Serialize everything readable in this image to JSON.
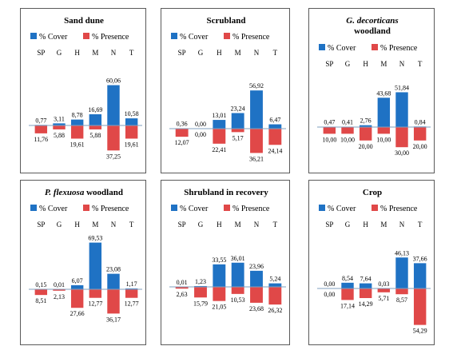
{
  "legend": {
    "cover": "% Cover",
    "presence": "% Presence"
  },
  "colors": {
    "cover": "#1f72c4",
    "presence": "#e04848"
  },
  "chart_data": [
    {
      "type": "bar",
      "title": "Sand dune",
      "categories": [
        "SP",
        "G",
        "H",
        "M",
        "N",
        "T"
      ],
      "series": [
        {
          "name": "% Cover",
          "values": [
            0.77,
            3.11,
            8.78,
            16.69,
            60.06,
            10.58
          ],
          "labels": [
            "0,77",
            "3,11",
            "8,78",
            "16,69",
            "60,06",
            "10,58"
          ]
        },
        {
          "name": "% Presence",
          "values": [
            11.76,
            5.88,
            19.61,
            5.88,
            37.25,
            19.61
          ],
          "labels": [
            "11,76",
            "5,88",
            "19,61",
            "5,88",
            "37,25",
            "19,61"
          ]
        }
      ]
    },
    {
      "type": "bar",
      "title": "Scrubland",
      "categories": [
        "SP",
        "G",
        "H",
        "M",
        "N",
        "T"
      ],
      "series": [
        {
          "name": "% Cover",
          "values": [
            0.36,
            0.0,
            13.01,
            23.24,
            56.92,
            6.47
          ],
          "labels": [
            "0,36",
            "0,00",
            "13,01",
            "23,24",
            "56,92",
            "6,47"
          ]
        },
        {
          "name": "% Presence",
          "values": [
            12.07,
            0.0,
            22.41,
            5.17,
            36.21,
            24.14
          ],
          "labels": [
            "12,07",
            "0,00",
            "22,41",
            "5,17",
            "36,21",
            "24,14"
          ]
        }
      ]
    },
    {
      "type": "bar",
      "title": "woodland",
      "title_italic": "G. decorticans",
      "categories": [
        "SP",
        "G",
        "H",
        "M",
        "N",
        "T"
      ],
      "series": [
        {
          "name": "% Cover",
          "values": [
            0.47,
            0.41,
            2.76,
            43.68,
            51.84,
            0.84
          ],
          "labels": [
            "0,47",
            "0,41",
            "2,76",
            "43,68",
            "51,84",
            "0,84"
          ]
        },
        {
          "name": "% Presence",
          "values": [
            10.0,
            10.0,
            20.0,
            10.0,
            30.0,
            20.0
          ],
          "labels": [
            "10,00",
            "10,00",
            "20,00",
            "10,00",
            "30,00",
            "20,00"
          ]
        }
      ]
    },
    {
      "type": "bar",
      "title": "woodland",
      "title_italic": "P. flexuosa",
      "categories": [
        "SP",
        "G",
        "H",
        "M",
        "N",
        "T"
      ],
      "series": [
        {
          "name": "% Cover",
          "values": [
            0.15,
            0.01,
            6.07,
            69.53,
            23.08,
            1.17
          ],
          "labels": [
            "0,15",
            "0,01",
            "6,07",
            "69,53",
            "23,08",
            "1,17"
          ]
        },
        {
          "name": "% Presence",
          "values": [
            8.51,
            2.13,
            27.66,
            12.77,
            36.17,
            12.77
          ],
          "labels": [
            "8,51",
            "2,13",
            "27,66",
            "12,77",
            "36,17",
            "12,77"
          ]
        }
      ]
    },
    {
      "type": "bar",
      "title": "Shrubland in recovery",
      "categories": [
        "SP",
        "G",
        "H",
        "M",
        "N",
        "T"
      ],
      "series": [
        {
          "name": "% Cover",
          "values": [
            0.01,
            1.23,
            33.55,
            36.01,
            23.96,
            5.24
          ],
          "labels": [
            "0,01",
            "1,23",
            "33,55",
            "36,01",
            "23,96",
            "5,24"
          ]
        },
        {
          "name": "% Presence",
          "values": [
            2.63,
            15.79,
            21.05,
            10.53,
            23.68,
            26.32
          ],
          "labels": [
            "2,63",
            "15,79",
            "21,05",
            "10,53",
            "23,68",
            "26,32"
          ]
        }
      ]
    },
    {
      "type": "bar",
      "title": "Crop",
      "categories": [
        "SP",
        "G",
        "H",
        "M",
        "N",
        "T"
      ],
      "series": [
        {
          "name": "% Cover",
          "values": [
            0.0,
            8.54,
            7.64,
            0.03,
            46.13,
            37.66
          ],
          "labels": [
            "0,00",
            "8,54",
            "7,64",
            "0,03",
            "46,13",
            "37,66"
          ]
        },
        {
          "name": "% Presence",
          "values": [
            0.0,
            17.14,
            14.29,
            5.71,
            8.57,
            54.29
          ],
          "labels": [
            "0,00",
            "17,14",
            "14,29",
            "5,71",
            "8,57",
            "54,29"
          ]
        }
      ]
    }
  ]
}
